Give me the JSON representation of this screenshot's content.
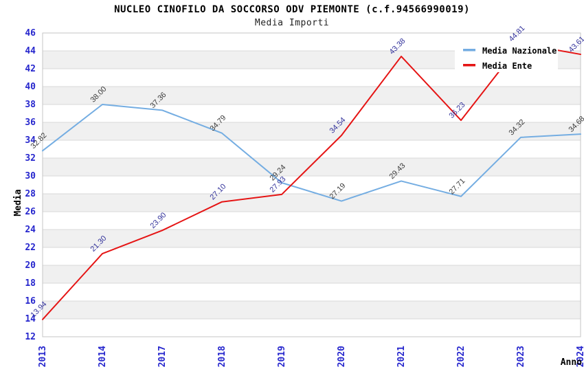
{
  "header": {
    "title": "NUCLEO CINOFILO DA SOCCORSO ODV PIEMONTE (c.f.94566990019)",
    "subtitle": "Media Importi"
  },
  "chart_data": {
    "type": "line",
    "title": "NUCLEO CINOFILO DA SOCCORSO ODV PIEMONTE (c.f.94566990019)",
    "subtitle": "Media Importi",
    "categories": [
      "2013",
      "2014",
      "2017",
      "2018",
      "2019",
      "2020",
      "2021",
      "2022",
      "2023",
      "2024"
    ],
    "series": [
      {
        "name": "Media Nazionale",
        "color": "#74ade2",
        "label_color": "#3c3c3c",
        "values": [
          32.82,
          38.0,
          37.36,
          34.79,
          29.24,
          27.19,
          29.43,
          27.71,
          34.32,
          34.68
        ]
      },
      {
        "name": "Media Ente",
        "color": "#e51414",
        "label_color": "#32329b",
        "values": [
          13.94,
          21.3,
          23.9,
          27.1,
          27.93,
          34.54,
          43.38,
          36.23,
          44.81,
          43.61
        ]
      }
    ],
    "xlabel": "Anno",
    "ylabel": "Media",
    "ylim": [
      12,
      46
    ],
    "ytick_step": 2,
    "value_decimals": 2,
    "legend_position": "top-right",
    "grid": "horizontal-bands",
    "style": {
      "band_color": "#f0f0f0",
      "plot_background": "#ffffff",
      "grid_color": "#d9d9d9",
      "border_color": "#c6c6c6",
      "tick_color": "#2626cd",
      "legend_background": "#ffffff"
    }
  }
}
